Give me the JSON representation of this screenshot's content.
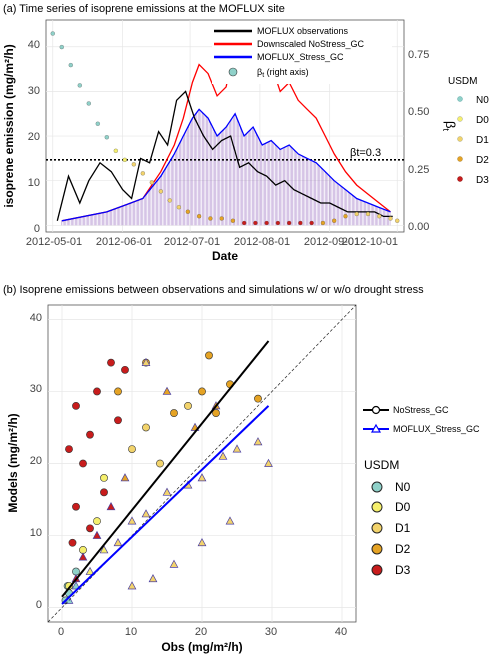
{
  "chart_data": [
    {
      "type": "line",
      "title": "(a) Time series of isoprene emissions at the MOFLUX site",
      "xlabel": "Date",
      "ylabel": "isoprene emission (mg/m²/h)",
      "y2label": "βt",
      "x_ticks": [
        "2012-05-01",
        "2012-06-01",
        "2012-07-01",
        "2012-08-01",
        "2012-09-01",
        "2012-10-01"
      ],
      "y_ticks": [
        "0",
        "10",
        "20",
        "30",
        "40"
      ],
      "y2_ticks": [
        "0.00",
        "0.25",
        "0.50",
        "0.75"
      ],
      "ylim": [
        -1.5,
        46
      ],
      "y2lim": [
        -0.02,
        0.92
      ],
      "xlim": [
        "2012-04-28",
        "2012-10-04"
      ],
      "grid": true,
      "legend_position": "top-right",
      "threshold": {
        "y2": 0.3,
        "label": "βt=0.3"
      },
      "series": [
        {
          "name": "MOFLUX observations",
          "color": "#000000",
          "x": [
            "2012-05-03",
            "2012-05-08",
            "2012-05-13",
            "2012-05-17",
            "2012-05-22",
            "2012-05-27",
            "2012-06-01",
            "2012-06-05",
            "2012-06-09",
            "2012-06-13",
            "2012-06-17",
            "2012-06-21",
            "2012-06-25",
            "2012-06-29",
            "2012-07-03",
            "2012-07-07",
            "2012-07-11",
            "2012-07-15",
            "2012-07-19",
            "2012-07-23",
            "2012-07-27",
            "2012-07-31",
            "2012-08-04",
            "2012-08-08",
            "2012-08-12",
            "2012-08-16",
            "2012-08-20",
            "2012-08-24",
            "2012-08-28",
            "2012-09-01",
            "2012-09-05",
            "2012-09-09",
            "2012-09-13",
            "2012-09-17",
            "2012-09-21",
            "2012-09-25",
            "2012-09-29"
          ],
          "y": [
            1,
            11,
            5,
            10,
            14,
            12,
            8,
            6,
            15,
            14,
            21,
            18,
            28,
            30,
            24,
            20,
            17,
            19,
            20,
            13,
            14,
            12,
            11,
            9,
            10,
            8,
            7,
            6,
            5,
            5,
            4,
            3,
            3,
            3,
            3,
            2,
            2
          ]
        },
        {
          "name": "Downscaled NoStress_GC",
          "color": "#ff0000",
          "x": [
            "2012-05-05",
            "2012-05-25",
            "2012-06-10",
            "2012-06-18",
            "2012-06-24",
            "2012-06-28",
            "2012-07-02",
            "2012-07-05",
            "2012-07-09",
            "2012-07-13",
            "2012-07-17",
            "2012-07-21",
            "2012-07-25",
            "2012-07-29",
            "2012-08-02",
            "2012-08-06",
            "2012-08-10",
            "2012-08-14",
            "2012-08-18",
            "2012-08-22",
            "2012-08-26",
            "2012-08-30",
            "2012-09-03",
            "2012-09-08",
            "2012-09-13",
            "2012-09-18",
            "2012-09-23",
            "2012-09-28"
          ],
          "y": [
            1,
            3,
            6,
            12,
            18,
            24,
            32,
            36,
            34,
            29,
            31,
            40,
            34,
            38,
            33,
            36,
            30,
            32,
            28,
            26,
            24,
            20,
            16,
            12,
            9,
            7,
            5,
            3
          ]
        },
        {
          "name": "MOFLUX_Stress_GC",
          "color": "#0000ff",
          "x": [
            "2012-05-05",
            "2012-05-25",
            "2012-06-10",
            "2012-06-18",
            "2012-06-24",
            "2012-06-28",
            "2012-07-02",
            "2012-07-05",
            "2012-07-09",
            "2012-07-13",
            "2012-07-17",
            "2012-07-21",
            "2012-07-25",
            "2012-07-29",
            "2012-08-02",
            "2012-08-06",
            "2012-08-10",
            "2012-08-14",
            "2012-08-18",
            "2012-08-22",
            "2012-08-26",
            "2012-08-30",
            "2012-09-03",
            "2012-09-08",
            "2012-09-13",
            "2012-09-18",
            "2012-09-23",
            "2012-09-28"
          ],
          "y": [
            1,
            3,
            6,
            11,
            16,
            20,
            24,
            26,
            24,
            20,
            22,
            25,
            20,
            22,
            18,
            19,
            17,
            18,
            16,
            15,
            14,
            12,
            10,
            8,
            6,
            5,
            4,
            3
          ]
        },
        {
          "name": "βt (right axis)",
          "type": "scatter",
          "axis": "right",
          "color": "#8fd1c9",
          "x": [
            "2012-05-01",
            "2012-05-05",
            "2012-05-09",
            "2012-05-13",
            "2012-05-17",
            "2012-05-21",
            "2012-05-25",
            "2012-05-29",
            "2012-06-02",
            "2012-06-06",
            "2012-06-10",
            "2012-06-14",
            "2012-06-18",
            "2012-06-22",
            "2012-06-26",
            "2012-06-30",
            "2012-07-05",
            "2012-07-10",
            "2012-07-15",
            "2012-07-20",
            "2012-07-25",
            "2012-07-30",
            "2012-08-04",
            "2012-08-09",
            "2012-08-14",
            "2012-08-19",
            "2012-08-24",
            "2012-08-29",
            "2012-09-03",
            "2012-09-08",
            "2012-09-13",
            "2012-09-18",
            "2012-09-23",
            "2012-09-28",
            "2012-10-01"
          ],
          "y": [
            0.86,
            0.8,
            0.72,
            0.63,
            0.55,
            0.46,
            0.4,
            0.34,
            0.3,
            0.28,
            0.24,
            0.2,
            0.16,
            0.12,
            0.09,
            0.07,
            0.05,
            0.04,
            0.04,
            0.03,
            0.02,
            0.02,
            0.02,
            0.02,
            0.02,
            0.02,
            0.02,
            0.02,
            0.03,
            0.05,
            0.06,
            0.06,
            0.05,
            0.04,
            0.03
          ],
          "usdm": [
            "N0",
            "N0",
            "N0",
            "N0",
            "N0",
            "N0",
            "N0",
            "D0",
            "D0",
            "D1",
            "D1",
            "D1",
            "D1",
            "D1",
            "D1",
            "D2",
            "D2",
            "D2",
            "D2",
            "D2",
            "D3",
            "D3",
            "D3",
            "D3",
            "D3",
            "D3",
            "D3",
            "D2",
            "D2",
            "D2",
            "D1",
            "D1",
            "D1",
            "D1",
            "D1"
          ]
        }
      ],
      "legend": [
        "MOFLUX observations",
        "Downscaled NoStress_GC",
        "MOFLUX_Stress_GC",
        "β_t (right axis)"
      ],
      "usdm_legend": {
        "title": "USDM",
        "classes": [
          {
            "label": "N0",
            "color": "#8fd1c9"
          },
          {
            "label": "D0",
            "color": "#f5ef6c"
          },
          {
            "label": "D1",
            "color": "#f2d36b"
          },
          {
            "label": "D2",
            "color": "#e5a324"
          },
          {
            "label": "D3",
            "color": "#c81c1c"
          }
        ]
      }
    },
    {
      "type": "scatter",
      "title": "(b) Isoprene emissions between observations and simulations w/ or w/o drought stress",
      "xlabel": "Obs (mg/m²/h)",
      "ylabel": "Models (mg/m²/h)",
      "x_ticks": [
        "0",
        "10",
        "20",
        "30",
        "40"
      ],
      "y_ticks": [
        "0",
        "10",
        "20",
        "30",
        "40"
      ],
      "xlim": [
        -2,
        42
      ],
      "ylim": [
        -2,
        42
      ],
      "grid": true,
      "legend_position": "right",
      "one_to_one_line": true,
      "series": [
        {
          "name": "NoStress_GC",
          "marker": "circle",
          "fit_color": "#000000",
          "fit": {
            "x": [
              0,
              29.5
            ],
            "y": [
              1.5,
              37
            ]
          },
          "points": [
            {
              "x": 0.5,
              "y": 1,
              "usdm": "N0"
            },
            {
              "x": 1,
              "y": 2,
              "usdm": "N0"
            },
            {
              "x": 2,
              "y": 5,
              "usdm": "N0"
            },
            {
              "x": 0.8,
              "y": 3,
              "usdm": "N0"
            },
            {
              "x": 1,
              "y": 3,
              "usdm": "D0"
            },
            {
              "x": 3,
              "y": 8,
              "usdm": "D0"
            },
            {
              "x": 5,
              "y": 12,
              "usdm": "D0"
            },
            {
              "x": 6,
              "y": 18,
              "usdm": "D0"
            },
            {
              "x": 10,
              "y": 22,
              "usdm": "D1"
            },
            {
              "x": 12,
              "y": 25,
              "usdm": "D1"
            },
            {
              "x": 14,
              "y": 20,
              "usdm": "D1"
            },
            {
              "x": 18,
              "y": 28,
              "usdm": "D1"
            },
            {
              "x": 20,
              "y": 30,
              "usdm": "D2"
            },
            {
              "x": 16,
              "y": 27,
              "usdm": "D2"
            },
            {
              "x": 8,
              "y": 30,
              "usdm": "D2"
            },
            {
              "x": 12,
              "y": 34,
              "usdm": "D2"
            },
            {
              "x": 21,
              "y": 35,
              "usdm": "D2"
            },
            {
              "x": 24,
              "y": 31,
              "usdm": "D2"
            },
            {
              "x": 28,
              "y": 29,
              "usdm": "D2"
            },
            {
              "x": 22,
              "y": 27,
              "usdm": "D2"
            },
            {
              "x": 2,
              "y": 28,
              "usdm": "D3"
            },
            {
              "x": 5,
              "y": 30,
              "usdm": "D3"
            },
            {
              "x": 7,
              "y": 34,
              "usdm": "D3"
            },
            {
              "x": 4,
              "y": 24,
              "usdm": "D3"
            },
            {
              "x": 1,
              "y": 22,
              "usdm": "D3"
            },
            {
              "x": 9,
              "y": 33,
              "usdm": "D3"
            },
            {
              "x": 3,
              "y": 20,
              "usdm": "D3"
            },
            {
              "x": 6,
              "y": 16,
              "usdm": "D3"
            },
            {
              "x": 2,
              "y": 14,
              "usdm": "D3"
            },
            {
              "x": 4,
              "y": 11,
              "usdm": "D3"
            },
            {
              "x": 1.5,
              "y": 9,
              "usdm": "D3"
            },
            {
              "x": 8,
              "y": 26,
              "usdm": "D3"
            }
          ]
        },
        {
          "name": "MOFLUX_Stress_GC",
          "marker": "triangle",
          "fit_color": "#0000ff",
          "fit": {
            "x": [
              0,
              29.5
            ],
            "y": [
              0.5,
              28
            ]
          },
          "points": [
            {
              "x": 1,
              "y": 1,
              "usdm": "N0"
            },
            {
              "x": 2,
              "y": 3,
              "usdm": "N0"
            },
            {
              "x": 4,
              "y": 5,
              "usdm": "D0"
            },
            {
              "x": 6,
              "y": 8,
              "usdm": "D0"
            },
            {
              "x": 8,
              "y": 9,
              "usdm": "D1"
            },
            {
              "x": 10,
              "y": 12,
              "usdm": "D1"
            },
            {
              "x": 12,
              "y": 13,
              "usdm": "D1"
            },
            {
              "x": 15,
              "y": 16,
              "usdm": "D1"
            },
            {
              "x": 18,
              "y": 17,
              "usdm": "D1"
            },
            {
              "x": 20,
              "y": 18,
              "usdm": "D1"
            },
            {
              "x": 23,
              "y": 21,
              "usdm": "D1"
            },
            {
              "x": 25,
              "y": 22,
              "usdm": "D1"
            },
            {
              "x": 28,
              "y": 23,
              "usdm": "D1"
            },
            {
              "x": 29.5,
              "y": 20,
              "usdm": "D1"
            },
            {
              "x": 24,
              "y": 12,
              "usdm": "D1"
            },
            {
              "x": 20,
              "y": 9,
              "usdm": "D1"
            },
            {
              "x": 16,
              "y": 6,
              "usdm": "D1"
            },
            {
              "x": 13,
              "y": 4,
              "usdm": "D1"
            },
            {
              "x": 10,
              "y": 3,
              "usdm": "D1"
            },
            {
              "x": 22,
              "y": 28,
              "usdm": "D2"
            },
            {
              "x": 19,
              "y": 25,
              "usdm": "D2"
            },
            {
              "x": 9,
              "y": 18,
              "usdm": "D2"
            },
            {
              "x": 7,
              "y": 14,
              "usdm": "D3"
            },
            {
              "x": 5,
              "y": 10,
              "usdm": "D3"
            },
            {
              "x": 3,
              "y": 7,
              "usdm": "D3"
            },
            {
              "x": 2,
              "y": 4,
              "usdm": "D3"
            },
            {
              "x": 12,
              "y": 34,
              "usdm": "D1"
            },
            {
              "x": 15,
              "y": 30,
              "usdm": "D2"
            }
          ]
        }
      ],
      "legend": [
        "NoStress_GC",
        "MOFLUX_Stress_GC"
      ],
      "usdm_legend": {
        "title": "USDM",
        "classes": [
          {
            "label": "N0",
            "color": "#8fd1c9"
          },
          {
            "label": "D0",
            "color": "#f5ef6c"
          },
          {
            "label": "D1",
            "color": "#f2d36b"
          },
          {
            "label": "D2",
            "color": "#e5a324"
          },
          {
            "label": "D3",
            "color": "#c81c1c"
          }
        ]
      }
    }
  ]
}
